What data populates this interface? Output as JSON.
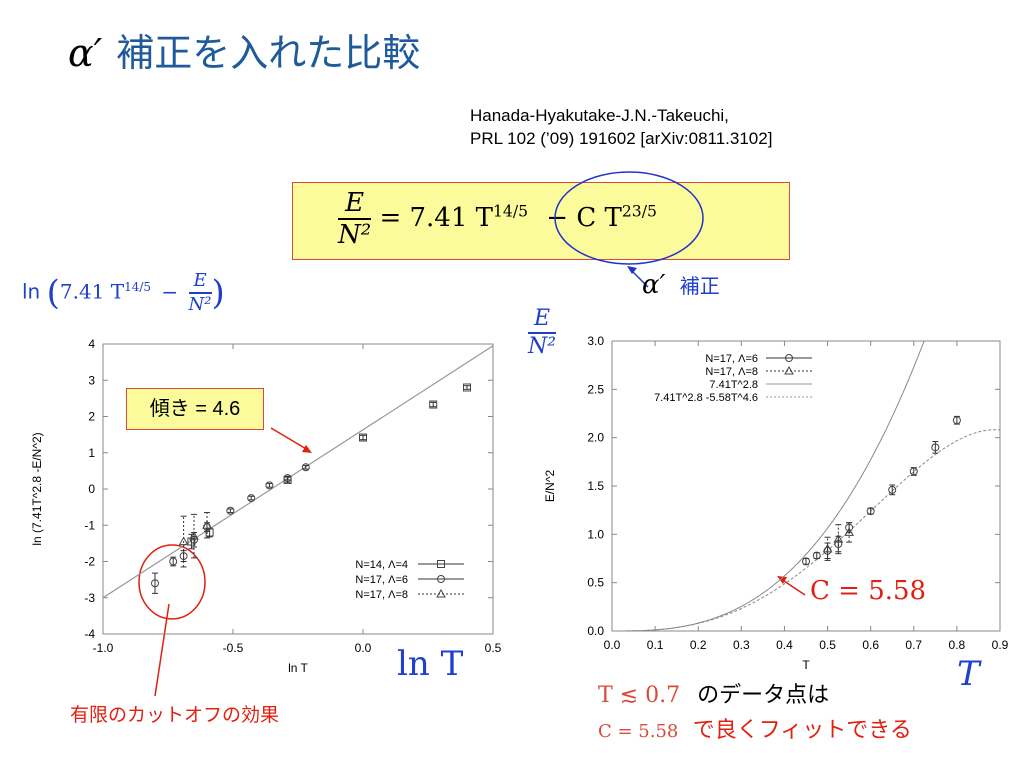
{
  "title": {
    "symbol": "α′",
    "text": "補正を入れた比較"
  },
  "citation": {
    "line1": "Hanada-Hyakutake-J.N.-Takeuchi,",
    "line2": "PRL 102 (’09) 191602 [arXiv:0811.3102]"
  },
  "equation": {
    "num": "E",
    "den": "N²",
    "rhs_main": "= 7.41 T",
    "exp1": "14/5",
    "rhs_corr": "− C T",
    "exp2": "23/5"
  },
  "correction_label": {
    "symbol": "α′",
    "text": "補正"
  },
  "left_ylabel_formula": {
    "prefix": "ln",
    "inner": "7.41 T",
    "exp": "14/5",
    "minus": "−",
    "num": "E",
    "den": "N²"
  },
  "slope_box": "傾き = 4.6",
  "ln_T_label": "ln T",
  "cutoff_note": "有限のカットオフの効果",
  "right_ylabel_formula": {
    "num": "E",
    "den": "N²"
  },
  "C_annotation": "C = 5.58",
  "T_label": "T",
  "fit_note": {
    "line1_math": "T ≲ 0.7",
    "line1_text": "のデータ点は",
    "line2_math": "C = 5.58",
    "line2_text": "で良くフィットできる"
  },
  "chart_data": [
    {
      "type": "scatter",
      "xlabel": "ln T",
      "ylabel": "ln (7.41T^2.8 -E/N^2)",
      "xlim": [
        -1.0,
        0.5
      ],
      "ylim": [
        -4,
        4
      ],
      "xticks": [
        -1.0,
        -0.5,
        0.0,
        0.5
      ],
      "xtick_labels": [
        "-1.0",
        "-0.5",
        "0.0",
        "0.5"
      ],
      "yticks": [
        -4,
        -3,
        -2,
        -1,
        0,
        1,
        2,
        3,
        4
      ],
      "ytick_labels": [
        "-4",
        "-3",
        "-2",
        "-1",
        "0",
        "1",
        "2",
        "3",
        "4"
      ],
      "legend_position": "bottom-right",
      "fit_line": {
        "points": [
          [
            -1.0,
            -3.0
          ],
          [
            0.5,
            3.95
          ]
        ]
      },
      "series": [
        {
          "name": "N=14, Λ=4",
          "marker": "square",
          "points": [
            [
              -0.66,
              -1.45
            ],
            [
              -0.59,
              -1.2
            ],
            [
              -0.29,
              0.25
            ],
            [
              0.0,
              1.42
            ],
            [
              0.27,
              2.33
            ],
            [
              0.4,
              2.8
            ]
          ],
          "errors": [
            0.2,
            0.12,
            0.08,
            0.06,
            0.06,
            0.05
          ]
        },
        {
          "name": "N=17, Λ=6",
          "marker": "circle",
          "points": [
            [
              -0.8,
              -2.6
            ],
            [
              -0.73,
              -2.0
            ],
            [
              -0.69,
              -1.85
            ],
            [
              -0.65,
              -1.4
            ],
            [
              -0.6,
              -1.05
            ],
            [
              -0.51,
              -0.6
            ],
            [
              -0.43,
              -0.25
            ],
            [
              -0.36,
              0.1
            ],
            [
              -0.29,
              0.3
            ],
            [
              -0.22,
              0.6
            ]
          ],
          "errors": [
            0.28,
            0.12,
            0.15,
            0.2,
            0.12,
            0.05,
            0.05,
            0.05,
            0.05,
            0.05
          ]
        },
        {
          "name": "N=17, Λ=8",
          "marker": "triangle",
          "points": [
            [
              -0.69,
              -1.45
            ],
            [
              -0.65,
              -1.3
            ],
            [
              -0.6,
              -1.0
            ]
          ],
          "errors": [
            0.7,
            0.6,
            0.35
          ]
        }
      ]
    },
    {
      "type": "scatter",
      "xlabel": "T",
      "ylabel": "E/N^2",
      "xlim": [
        0.0,
        0.9
      ],
      "ylim": [
        0.0,
        3.0
      ],
      "xticks": [
        0.0,
        0.1,
        0.2,
        0.3,
        0.4,
        0.5,
        0.6,
        0.7,
        0.8,
        0.9
      ],
      "xtick_labels": [
        "0.0",
        "0.1",
        "0.2",
        "0.3",
        "0.4",
        "0.5",
        "0.6",
        "0.7",
        "0.8",
        "0.9"
      ],
      "yticks": [
        0.0,
        0.5,
        1.0,
        1.5,
        2.0,
        2.5,
        3.0
      ],
      "ytick_labels": [
        "0.0",
        "0.5",
        "1.0",
        "1.5",
        "2.0",
        "2.5",
        "3.0"
      ],
      "legend_position": "top-left",
      "series": [
        {
          "name": "N=17, Λ=6",
          "marker": "circle",
          "points": [
            [
              0.45,
              0.72
            ],
            [
              0.475,
              0.78
            ],
            [
              0.5,
              0.83
            ],
            [
              0.525,
              0.9
            ],
            [
              0.55,
              1.07
            ],
            [
              0.6,
              1.24
            ],
            [
              0.65,
              1.46
            ],
            [
              0.7,
              1.65
            ],
            [
              0.75,
              1.9
            ],
            [
              0.8,
              2.18
            ]
          ],
          "errors": [
            0.03,
            0.03,
            0.08,
            0.08,
            0.05,
            0.03,
            0.05,
            0.04,
            0.06,
            0.04
          ]
        },
        {
          "name": "N=17, Λ=8",
          "marker": "triangle",
          "points": [
            [
              0.5,
              0.85
            ],
            [
              0.525,
              0.95
            ],
            [
              0.55,
              1.02
            ]
          ],
          "errors": [
            0.12,
            0.15,
            0.1
          ]
        },
        {
          "name": "7.41T^2.8",
          "style": "solid",
          "formula": "7.41*T^2.8"
        },
        {
          "name": "7.41T^2.8 -5.58T^4.6",
          "style": "dashed",
          "formula": "7.41*T^2.8 - 5.58*T^4.6"
        }
      ]
    }
  ]
}
